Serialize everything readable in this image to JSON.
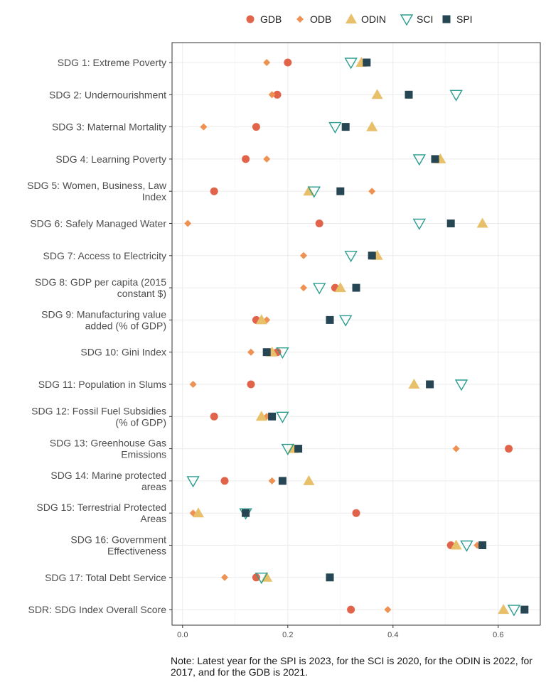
{
  "chart_data": {
    "type": "scatter",
    "orientation": "horizontal-dot-plot",
    "xlim": [
      -0.02,
      0.68
    ],
    "x_ticks": [
      "0.0",
      "0.2",
      "0.4",
      "0.6"
    ],
    "x_tick_values": [
      0.0,
      0.2,
      0.4,
      0.6
    ],
    "grid": true,
    "legend_position": "top",
    "categories": [
      "SDG 1: Extreme Poverty",
      "SDG 2: Undernourishment",
      "SDG 3: Maternal Mortality",
      "SDG 4: Learning Poverty",
      "SDG 5: Women, Business, Law Index",
      "SDG 6: Safely Managed Water",
      "SDG 7: Access to Electricity",
      "SDG 8: GDP per capita (2015 constant $)",
      "SDG 9: Manufacturing value added (% of GDP)",
      "SDG 10: Gini Index",
      "SDG 11: Population in Slums",
      "SDG 12: Fossil Fuel Subsidies (% of GDP)",
      "SDG 13: Greenhouse Gas Emissions",
      "SDG 14: Marine protected areas",
      "SDG 15: Terrestrial Protected Areas",
      "SDG 16: Government Effectiveness",
      "SDG 17: Total Debt Service",
      "SDR: SDG Index Overall Score"
    ],
    "category_lines": [
      [
        "SDG 1: Extreme Poverty"
      ],
      [
        "SDG 2: Undernourishment"
      ],
      [
        "SDG 3: Maternal Mortality"
      ],
      [
        "SDG 4: Learning Poverty"
      ],
      [
        "SDG 5: Women, Business, Law",
        "Index"
      ],
      [
        "SDG 6: Safely Managed Water"
      ],
      [
        "SDG 7: Access to Electricity"
      ],
      [
        "SDG 8: GDP per capita (2015",
        "constant $)"
      ],
      [
        "SDG 9: Manufacturing value",
        "added (% of GDP)"
      ],
      [
        "SDG 10: Gini Index"
      ],
      [
        "SDG 11: Population in Slums"
      ],
      [
        "SDG 12: Fossil Fuel Subsidies",
        "(% of GDP)"
      ],
      [
        "SDG 13: Greenhouse Gas",
        "Emissions"
      ],
      [
        "SDG 14: Marine protected",
        "areas"
      ],
      [
        "SDG 15: Terrestrial Protected",
        "Areas"
      ],
      [
        "SDG 16: Government",
        "Effectiveness"
      ],
      [
        "SDG 17: Total Debt Service"
      ],
      [
        "SDR: SDG Index Overall Score"
      ]
    ],
    "series": [
      {
        "name": "GDB",
        "shape": "circle",
        "color": "#E1644A",
        "values": [
          0.2,
          0.18,
          0.14,
          0.12,
          0.06,
          0.26,
          0.36,
          0.29,
          0.14,
          0.18,
          0.13,
          0.06,
          0.62,
          0.08,
          0.33,
          0.51,
          0.14,
          0.32
        ]
      },
      {
        "name": "ODB",
        "shape": "diamond",
        "color": "#EE9253",
        "values": [
          0.16,
          0.17,
          0.04,
          0.16,
          0.36,
          0.01,
          0.23,
          0.23,
          0.16,
          0.13,
          0.02,
          0.16,
          0.52,
          0.17,
          0.02,
          0.56,
          0.08,
          0.39
        ]
      },
      {
        "name": "ODIN",
        "shape": "triangle-up",
        "color": "#E8C06A",
        "values": [
          0.34,
          0.37,
          0.36,
          0.49,
          0.24,
          0.57,
          0.37,
          0.3,
          0.15,
          0.17,
          0.44,
          0.15,
          0.21,
          0.24,
          0.03,
          0.52,
          0.16,
          0.61
        ]
      },
      {
        "name": "SCI",
        "shape": "triangle-down-open",
        "color": "#2A9D8F",
        "values": [
          0.32,
          0.52,
          0.29,
          0.45,
          0.25,
          0.45,
          0.32,
          0.26,
          0.31,
          0.19,
          0.53,
          0.19,
          0.2,
          0.02,
          0.12,
          0.54,
          0.15,
          0.63
        ]
      },
      {
        "name": "SPI",
        "shape": "square",
        "color": "#264653",
        "values": [
          0.35,
          0.43,
          0.31,
          0.48,
          0.3,
          0.51,
          0.36,
          0.33,
          0.28,
          0.16,
          0.47,
          0.17,
          0.22,
          0.19,
          0.12,
          0.57,
          0.28,
          0.65
        ]
      }
    ],
    "note": "Note: Latest year for the SPI is 2023, for the SCI is 2020, for the ODIN is 2022, for 2017, and for the GDB is 2021."
  }
}
